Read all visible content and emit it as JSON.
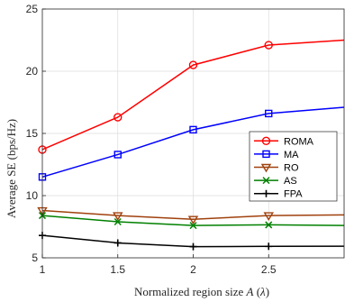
{
  "chart_data": {
    "type": "line",
    "title": "",
    "xlabel": "Normalized region size $A$ ($\\lambda$)",
    "xlabel_parts": {
      "prefix": "Normalized region size ",
      "var": "A",
      "unit_open": " (",
      "unit_var": "λ",
      "unit_close": ")"
    },
    "ylabel": "Average SE (bps/Hz)",
    "xlim": [
      1,
      3
    ],
    "ylim": [
      5,
      25
    ],
    "xticks": [
      1,
      1.5,
      2,
      2.5
    ],
    "xtick_labels": [
      "1",
      "1.5",
      "2",
      "2.5"
    ],
    "yticks": [
      5,
      10,
      15,
      20,
      25
    ],
    "ytick_labels": [
      "5",
      "10",
      "15",
      "20",
      "25"
    ],
    "grid": true,
    "legend_position": "center-right",
    "x": [
      1,
      1.5,
      2,
      2.5,
      3
    ],
    "series": [
      {
        "name": "ROMA",
        "values": [
          13.7,
          16.3,
          20.5,
          22.1,
          22.5
        ],
        "color": "#ff0000",
        "marker": "circle",
        "marker_count": 4
      },
      {
        "name": "MA",
        "values": [
          11.5,
          13.3,
          15.3,
          16.6,
          17.1
        ],
        "color": "#0000ff",
        "marker": "square",
        "marker_count": 4
      },
      {
        "name": "RO",
        "values": [
          8.8,
          8.4,
          8.1,
          8.4,
          8.45
        ],
        "color": "#a0410d",
        "marker": "triangle-down",
        "marker_count": 4
      },
      {
        "name": "AS",
        "values": [
          8.4,
          7.9,
          7.6,
          7.65,
          7.6
        ],
        "color": "#008000",
        "marker": "x",
        "marker_count": 4
      },
      {
        "name": "FPA",
        "values": [
          6.8,
          6.2,
          5.9,
          5.92,
          5.93
        ],
        "color": "#000000",
        "marker": "plus",
        "marker_count": 4
      }
    ]
  }
}
